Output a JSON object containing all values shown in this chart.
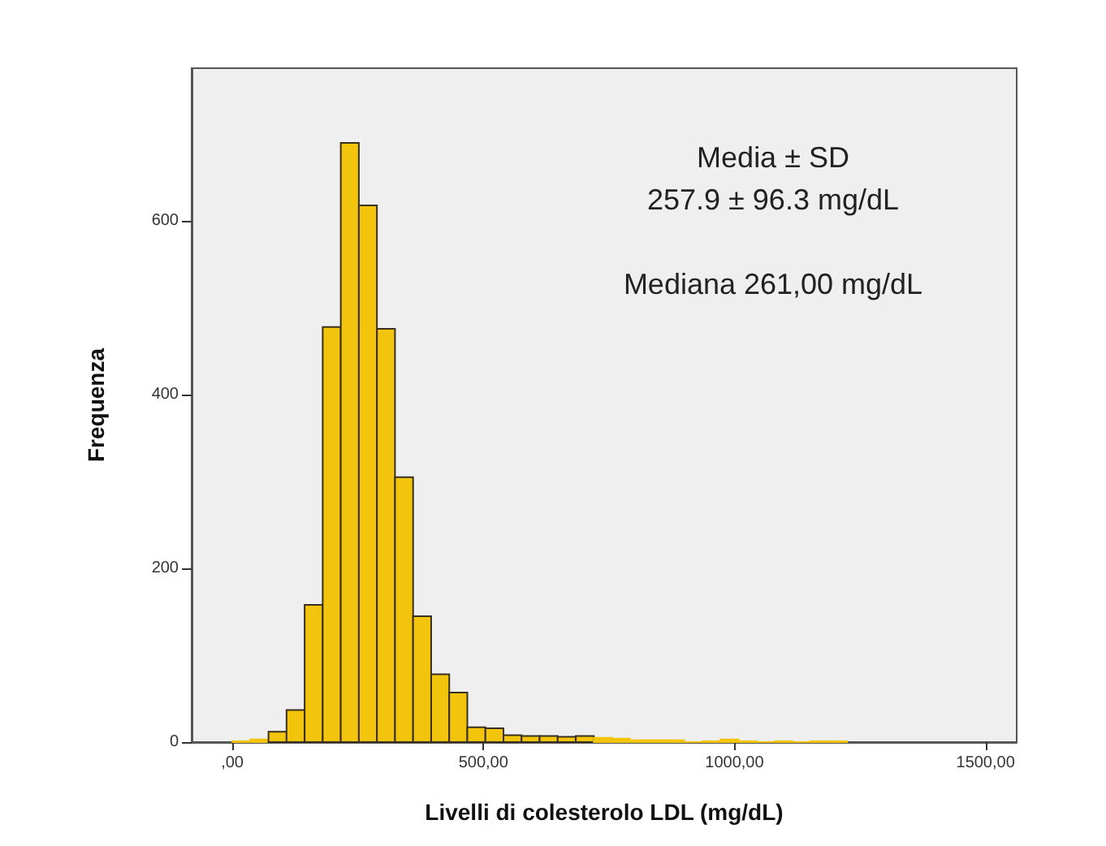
{
  "chart_data": {
    "type": "histogram",
    "xlabel": "Livelli di colesterolo LDL (mg/dL)",
    "ylabel": "Frequenza",
    "annotations": [
      "Media ± SD",
      "257.9 ± 96.3 mg/dL",
      "Mediana 261,00 mg/dL"
    ],
    "bins": [
      0,
      36,
      72,
      108,
      144,
      180,
      216,
      252,
      288,
      324,
      360,
      396,
      432,
      468,
      504,
      540,
      576,
      612,
      648,
      684,
      720,
      756,
      792,
      828,
      864,
      900,
      936,
      972,
      1008,
      1044,
      1080,
      1116,
      1152,
      1188,
      1224
    ],
    "values": [
      1,
      3,
      12,
      37,
      158,
      478,
      690,
      618,
      476,
      305,
      145,
      78,
      57,
      17,
      16,
      8,
      7,
      7,
      6,
      7,
      5,
      4,
      2,
      2,
      2,
      0,
      1,
      3,
      1,
      0,
      1,
      0,
      1,
      1
    ],
    "color": "#f2c40c",
    "xlim": [
      -81,
      1562
    ],
    "xticks": [
      {
        "value": 0,
        "label": ",00"
      },
      {
        "value": 500,
        "label": "500,00"
      },
      {
        "value": 1000,
        "label": "1000,00"
      },
      {
        "value": 1500,
        "label": "1500,00"
      }
    ],
    "ylim": [
      0,
      776
    ],
    "yticks": [
      0,
      200,
      400,
      600
    ],
    "grid": false
  }
}
